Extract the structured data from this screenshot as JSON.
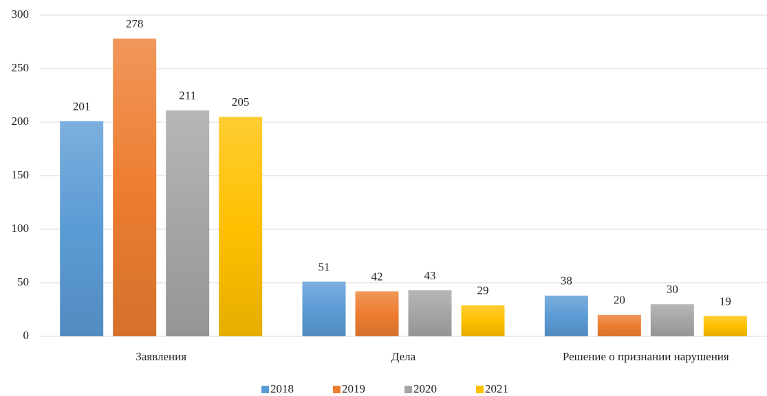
{
  "chart_data": {
    "type": "bar",
    "categories": [
      "Заявления",
      "Дела",
      "Решение о признании нарушения"
    ],
    "series": [
      {
        "name": "2018",
        "color": "#5b9bd5",
        "values": [
          201,
          51,
          38
        ]
      },
      {
        "name": "2019",
        "color": "#ed7d31",
        "values": [
          278,
          42,
          20
        ]
      },
      {
        "name": "2020",
        "color": "#a5a5a5",
        "values": [
          211,
          43,
          30
        ]
      },
      {
        "name": "2021",
        "color": "#ffc000",
        "values": [
          205,
          29,
          19
        ]
      }
    ],
    "ylim": [
      0,
      300
    ],
    "yticks": [
      0,
      50,
      100,
      150,
      200,
      250,
      300
    ],
    "grid": true,
    "legend": "bottom"
  }
}
